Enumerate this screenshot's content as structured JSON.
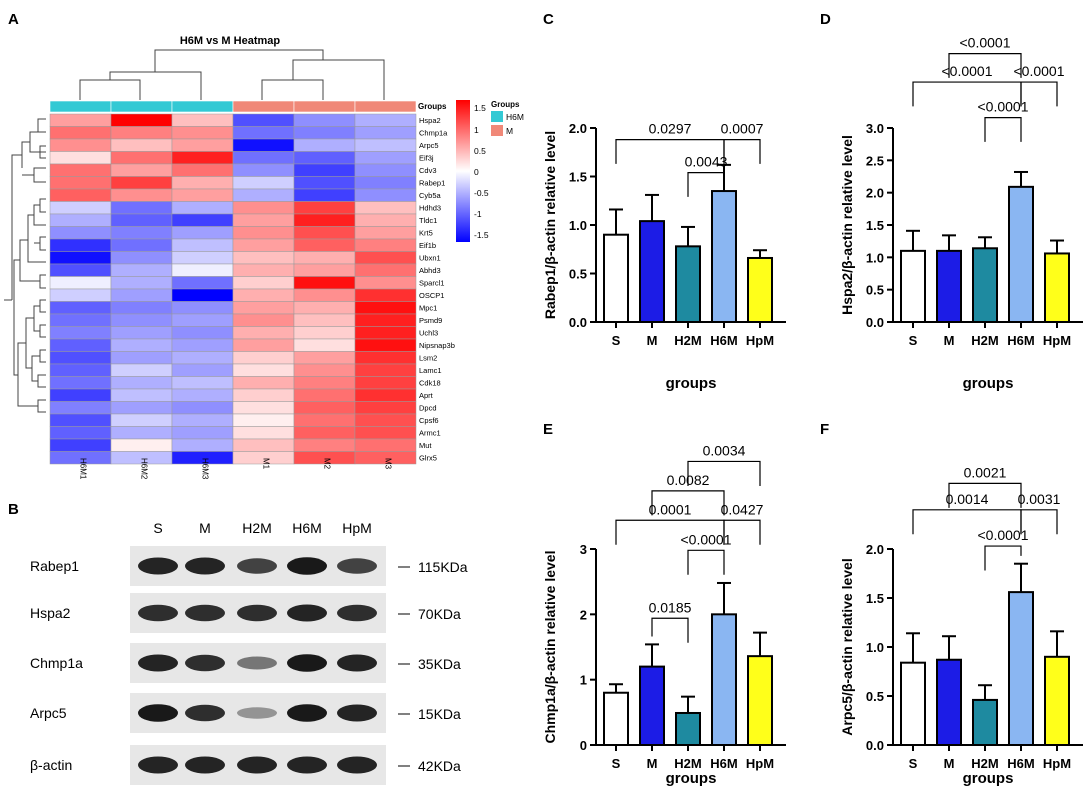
{
  "figure": {
    "panel_letters": [
      "A",
      "B",
      "C",
      "D",
      "E",
      "F"
    ]
  },
  "heatmap": {
    "title": "H6M vs M Heatmap",
    "samples": [
      "H6M1",
      "H6M2",
      "H6M3",
      "M1",
      "M2",
      "M3"
    ],
    "sample_groups": [
      "H6M",
      "H6M",
      "H6M",
      "M",
      "M",
      "M"
    ],
    "genes": [
      "Hspa2",
      "Chmp1a",
      "Arpc5",
      "Eif3j",
      "Cdv3",
      "Rabep1",
      "Cyb5a",
      "Hdhd3",
      "Tldc1",
      "Krt5",
      "Eif1b",
      "Ubxn1",
      "Abhd3",
      "Sparcl1",
      "OSCP1",
      "Mpc1",
      "Psmd9",
      "Uchl3",
      "Nipsnap3b",
      "Lsm2",
      "Lamc1",
      "Cdk18",
      "Aprt",
      "Dpcd",
      "Cpsf6",
      "Armc1",
      "Mut",
      "Glrx5"
    ],
    "values": [
      [
        0.6,
        1.6,
        0.4,
        -1.1,
        -0.7,
        -0.5
      ],
      [
        0.9,
        0.8,
        0.7,
        -0.9,
        -0.8,
        -0.6
      ],
      [
        0.7,
        0.4,
        0.6,
        -1.5,
        -0.5,
        -0.4
      ],
      [
        0.2,
        0.9,
        1.4,
        -0.9,
        -1.0,
        -0.6
      ],
      [
        0.9,
        0.6,
        0.9,
        -0.7,
        -1.2,
        -0.7
      ],
      [
        0.9,
        1.2,
        0.5,
        -0.3,
        -1.1,
        -0.8
      ],
      [
        1.0,
        0.7,
        0.6,
        -0.5,
        -1.2,
        -0.7
      ],
      [
        -0.3,
        -0.9,
        -0.5,
        0.7,
        1.2,
        0.4
      ],
      [
        -0.5,
        -1.0,
        -1.2,
        0.6,
        1.4,
        0.5
      ],
      [
        -0.7,
        -0.8,
        -0.6,
        0.7,
        1.1,
        0.6
      ],
      [
        -1.3,
        -0.9,
        -0.4,
        0.6,
        1.0,
        0.8
      ],
      [
        -1.5,
        -0.7,
        -0.3,
        0.4,
        0.5,
        1.1
      ],
      [
        -1.1,
        -0.5,
        -0.1,
        0.5,
        0.6,
        0.9
      ],
      [
        -0.1,
        -0.5,
        -0.9,
        0.3,
        1.5,
        0.7
      ],
      [
        -0.3,
        -0.6,
        -1.7,
        0.5,
        0.7,
        1.3
      ],
      [
        -1.0,
        -0.8,
        -0.7,
        0.6,
        0.5,
        1.5
      ],
      [
        -0.9,
        -0.7,
        -0.6,
        0.7,
        0.4,
        1.4
      ],
      [
        -0.8,
        -0.6,
        -0.7,
        0.5,
        0.3,
        1.4
      ],
      [
        -1.0,
        -0.5,
        -0.6,
        0.6,
        0.2,
        1.5
      ],
      [
        -1.1,
        -0.6,
        -0.5,
        0.3,
        0.6,
        1.3
      ],
      [
        -1.0,
        -0.3,
        -0.6,
        0.2,
        0.7,
        1.2
      ],
      [
        -0.9,
        -0.5,
        -0.4,
        0.5,
        0.8,
        1.2
      ],
      [
        -1.2,
        -0.4,
        -0.5,
        0.3,
        0.9,
        1.3
      ],
      [
        -0.8,
        -0.6,
        -0.7,
        0.2,
        1.0,
        1.2
      ],
      [
        -1.1,
        -0.3,
        -0.5,
        0.1,
        0.9,
        1.1
      ],
      [
        -1.0,
        -0.5,
        -0.6,
        0.2,
        1.0,
        1.1
      ],
      [
        -1.2,
        0.1,
        -0.5,
        0.4,
        0.8,
        0.9
      ],
      [
        -0.9,
        -0.4,
        -1.4,
        0.3,
        1.1,
        1.0
      ]
    ],
    "groups_label": "Groups",
    "legend_title": "Groups",
    "legend_items": [
      {
        "label": "H6M",
        "color": "#33c9d4"
      },
      {
        "label": "M",
        "color": "#f08878"
      }
    ],
    "scale_ticks": [
      "1.5",
      "1",
      "0.5",
      "0",
      "-0.5",
      "-1",
      "-1.5"
    ],
    "scale_colors": {
      "high": "#ff0000",
      "mid": "#ffffff",
      "low": "#0000ff"
    }
  },
  "western_blot": {
    "lanes": [
      "S",
      "M",
      "H2M",
      "H6M",
      "HpM"
    ],
    "rows": [
      {
        "protein": "Rabep1",
        "size": "115KDa",
        "intensity": [
          0.9,
          0.9,
          0.75,
          0.95,
          0.75
        ]
      },
      {
        "protein": "Hspa2",
        "size": "70KDa",
        "intensity": [
          0.85,
          0.85,
          0.85,
          0.9,
          0.85
        ]
      },
      {
        "protein": "Chmp1a",
        "size": "35KDa",
        "intensity": [
          0.9,
          0.85,
          0.5,
          0.95,
          0.9
        ]
      },
      {
        "protein": "Arpc5",
        "size": "15KDa",
        "intensity": [
          0.95,
          0.85,
          0.35,
          0.95,
          0.9
        ]
      },
      {
        "protein": "β-actin",
        "size": "42KDa",
        "intensity": [
          0.9,
          0.9,
          0.9,
          0.9,
          0.9
        ]
      }
    ]
  },
  "chart_data": [
    {
      "panel": "C",
      "type": "bar",
      "categories": [
        "S",
        "M",
        "H2M",
        "H6M",
        "HpM"
      ],
      "values": [
        0.9,
        1.04,
        0.78,
        1.35,
        0.66
      ],
      "errors": [
        0.26,
        0.27,
        0.2,
        0.27,
        0.08
      ],
      "colors": [
        "#ffffff",
        "#1c1ce6",
        "#1e8aa0",
        "#8ab6f2",
        "#ffff1a"
      ],
      "ylabel": "Rabep1/β-actin relative level",
      "xlabel": "groups",
      "ylim": [
        0,
        2.0
      ],
      "yticks": [
        "0.0",
        "0.5",
        "1.0",
        "1.5",
        "2.0"
      ],
      "comparisons": [
        {
          "from": 0,
          "to": 3,
          "label": "0.0297",
          "y": 1.88
        },
        {
          "from": 3,
          "to": 4,
          "label": "0.0007",
          "y": 1.88
        },
        {
          "from": 2,
          "to": 3,
          "label": "0.0043",
          "y": 1.54
        }
      ]
    },
    {
      "panel": "D",
      "type": "bar",
      "categories": [
        "S",
        "M",
        "H2M",
        "H6M",
        "HpM"
      ],
      "values": [
        1.1,
        1.1,
        1.14,
        2.09,
        1.06
      ],
      "errors": [
        0.31,
        0.24,
        0.17,
        0.23,
        0.2
      ],
      "colors": [
        "#ffffff",
        "#1c1ce6",
        "#1e8aa0",
        "#8ab6f2",
        "#ffff1a"
      ],
      "ylabel": "Hspa2/β-actin relative level",
      "xlabel": "groups",
      "ylim": [
        0,
        3.0
      ],
      "yticks": [
        "0.0",
        "0.5",
        "1.0",
        "1.5",
        "2.0",
        "2.5",
        "3.0"
      ],
      "comparisons": [
        {
          "from": 1,
          "to": 3,
          "label": "<0.0001",
          "y": 4.15
        },
        {
          "from": 0,
          "to": 3,
          "label": "<0.0001",
          "y": 3.71
        },
        {
          "from": 3,
          "to": 4,
          "label": "<0.0001",
          "y": 3.71
        },
        {
          "from": 2,
          "to": 3,
          "label": "<0.0001",
          "y": 3.16
        }
      ]
    },
    {
      "panel": "E",
      "type": "bar",
      "categories": [
        "S",
        "M",
        "H2M",
        "H6M",
        "HpM"
      ],
      "values": [
        0.8,
        1.2,
        0.49,
        2.0,
        1.36
      ],
      "errors": [
        0.13,
        0.34,
        0.25,
        0.48,
        0.36
      ],
      "colors": [
        "#ffffff",
        "#1c1ce6",
        "#1e8aa0",
        "#8ab6f2",
        "#ffff1a"
      ],
      "ylabel": "Chmp1a/β-actin relative level",
      "xlabel": "groups",
      "ylim": [
        0,
        3.0
      ],
      "yticks": [
        "0",
        "1",
        "2",
        "3"
      ],
      "comparisons": [
        {
          "from": 2,
          "to": 4,
          "label": "0.0034",
          "y": 4.34
        },
        {
          "from": 1,
          "to": 3,
          "label": "0.0082",
          "y": 3.89
        },
        {
          "from": 0,
          "to": 3,
          "label": "0.0001",
          "y": 3.44
        },
        {
          "from": 3,
          "to": 4,
          "label": "0.0427",
          "y": 3.44
        },
        {
          "from": 2,
          "to": 3,
          "label": "<0.0001",
          "y": 2.98
        },
        {
          "from": 1,
          "to": 2,
          "label": "0.0185",
          "y": 1.94
        }
      ]
    },
    {
      "panel": "F",
      "type": "bar",
      "categories": [
        "S",
        "M",
        "H2M",
        "H6M",
        "HpM"
      ],
      "values": [
        0.84,
        0.87,
        0.46,
        1.56,
        0.9
      ],
      "errors": [
        0.3,
        0.24,
        0.15,
        0.29,
        0.26
      ],
      "colors": [
        "#ffffff",
        "#1c1ce6",
        "#1e8aa0",
        "#8ab6f2",
        "#ffff1a"
      ],
      "ylabel": "Arpc5/β-actin relative level",
      "xlabel": "groups",
      "ylim": [
        0,
        2.0
      ],
      "yticks": [
        "0.0",
        "0.5",
        "1.0",
        "1.5",
        "2.0"
      ],
      "comparisons": [
        {
          "from": 1,
          "to": 3,
          "label": "0.0021",
          "y": 2.67
        },
        {
          "from": 0,
          "to": 3,
          "label": "0.0014",
          "y": 2.4
        },
        {
          "from": 3,
          "to": 4,
          "label": "0.0031",
          "y": 2.4
        },
        {
          "from": 2,
          "to": 3,
          "label": "<0.0001",
          "y": 2.03
        }
      ]
    }
  ]
}
